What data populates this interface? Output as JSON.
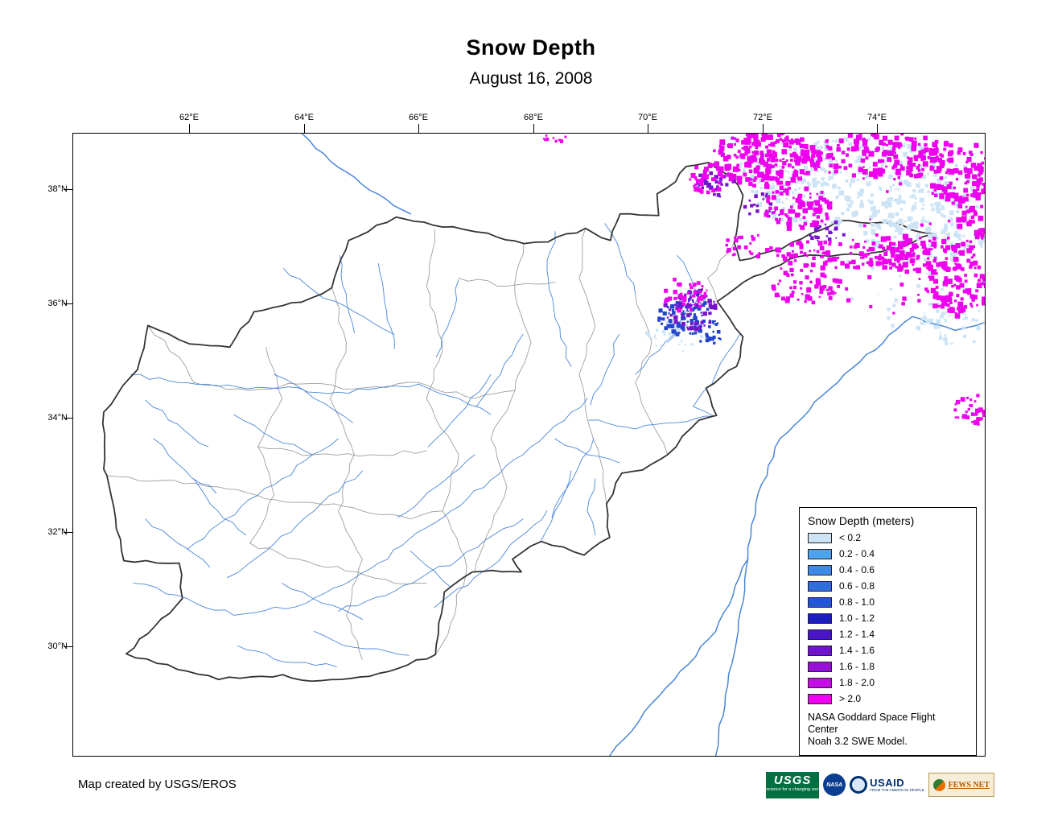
{
  "title": "Snow Depth",
  "subtitle": "August 16, 2008",
  "map": {
    "lon_ticks": [
      "62°E",
      "64°E",
      "66°E",
      "68°E",
      "70°E",
      "72°E",
      "74°E"
    ],
    "lat_ticks": [
      "38°N",
      "36°N",
      "34°N",
      "32°N",
      "30°N"
    ],
    "colors": {
      "river": "#4a86d8",
      "province_boundary": "#9e9e9e",
      "country_border": "#333333",
      "snow_light": "#cde4f6",
      "snow_blue": "#2244cc",
      "snow_purple": "#7712cf",
      "snow_magenta": "#ee00ee"
    }
  },
  "legend": {
    "title": "Snow Depth (meters)",
    "items": [
      {
        "label": "< 0.2",
        "color": "#cde4f6"
      },
      {
        "label": "0.2 - 0.4",
        "color": "#4da3f0"
      },
      {
        "label": "0.4 - 0.6",
        "color": "#3d8ae8"
      },
      {
        "label": "0.6 - 0.8",
        "color": "#2f6fdd"
      },
      {
        "label": "0.8 - 1.0",
        "color": "#2256d4"
      },
      {
        "label": "1.0 - 1.2",
        "color": "#1b1fc0"
      },
      {
        "label": "1.2 - 1.4",
        "color": "#4a14c8"
      },
      {
        "label": "1.4 - 1.6",
        "color": "#7013cf"
      },
      {
        "label": "1.6 - 1.8",
        "color": "#9910d8"
      },
      {
        "label": "1.8 - 2.0",
        "color": "#c40ce4"
      },
      {
        "label": "> 2.0",
        "color": "#f400f4"
      }
    ],
    "note_line1": "NASA Goddard Space Flight Center",
    "note_line2": "Noah 3.2 SWE Model."
  },
  "footer": {
    "credit": "Map created by USGS/EROS"
  },
  "logos": {
    "usgs": {
      "name": "USGS",
      "tagline": "science for a changing world"
    },
    "nasa": {
      "name": "NASA"
    },
    "usaid": {
      "name": "USAID",
      "tagline": "FROM THE AMERICAN PEOPLE"
    },
    "fewsnet": {
      "name": "FEWS NET"
    }
  }
}
